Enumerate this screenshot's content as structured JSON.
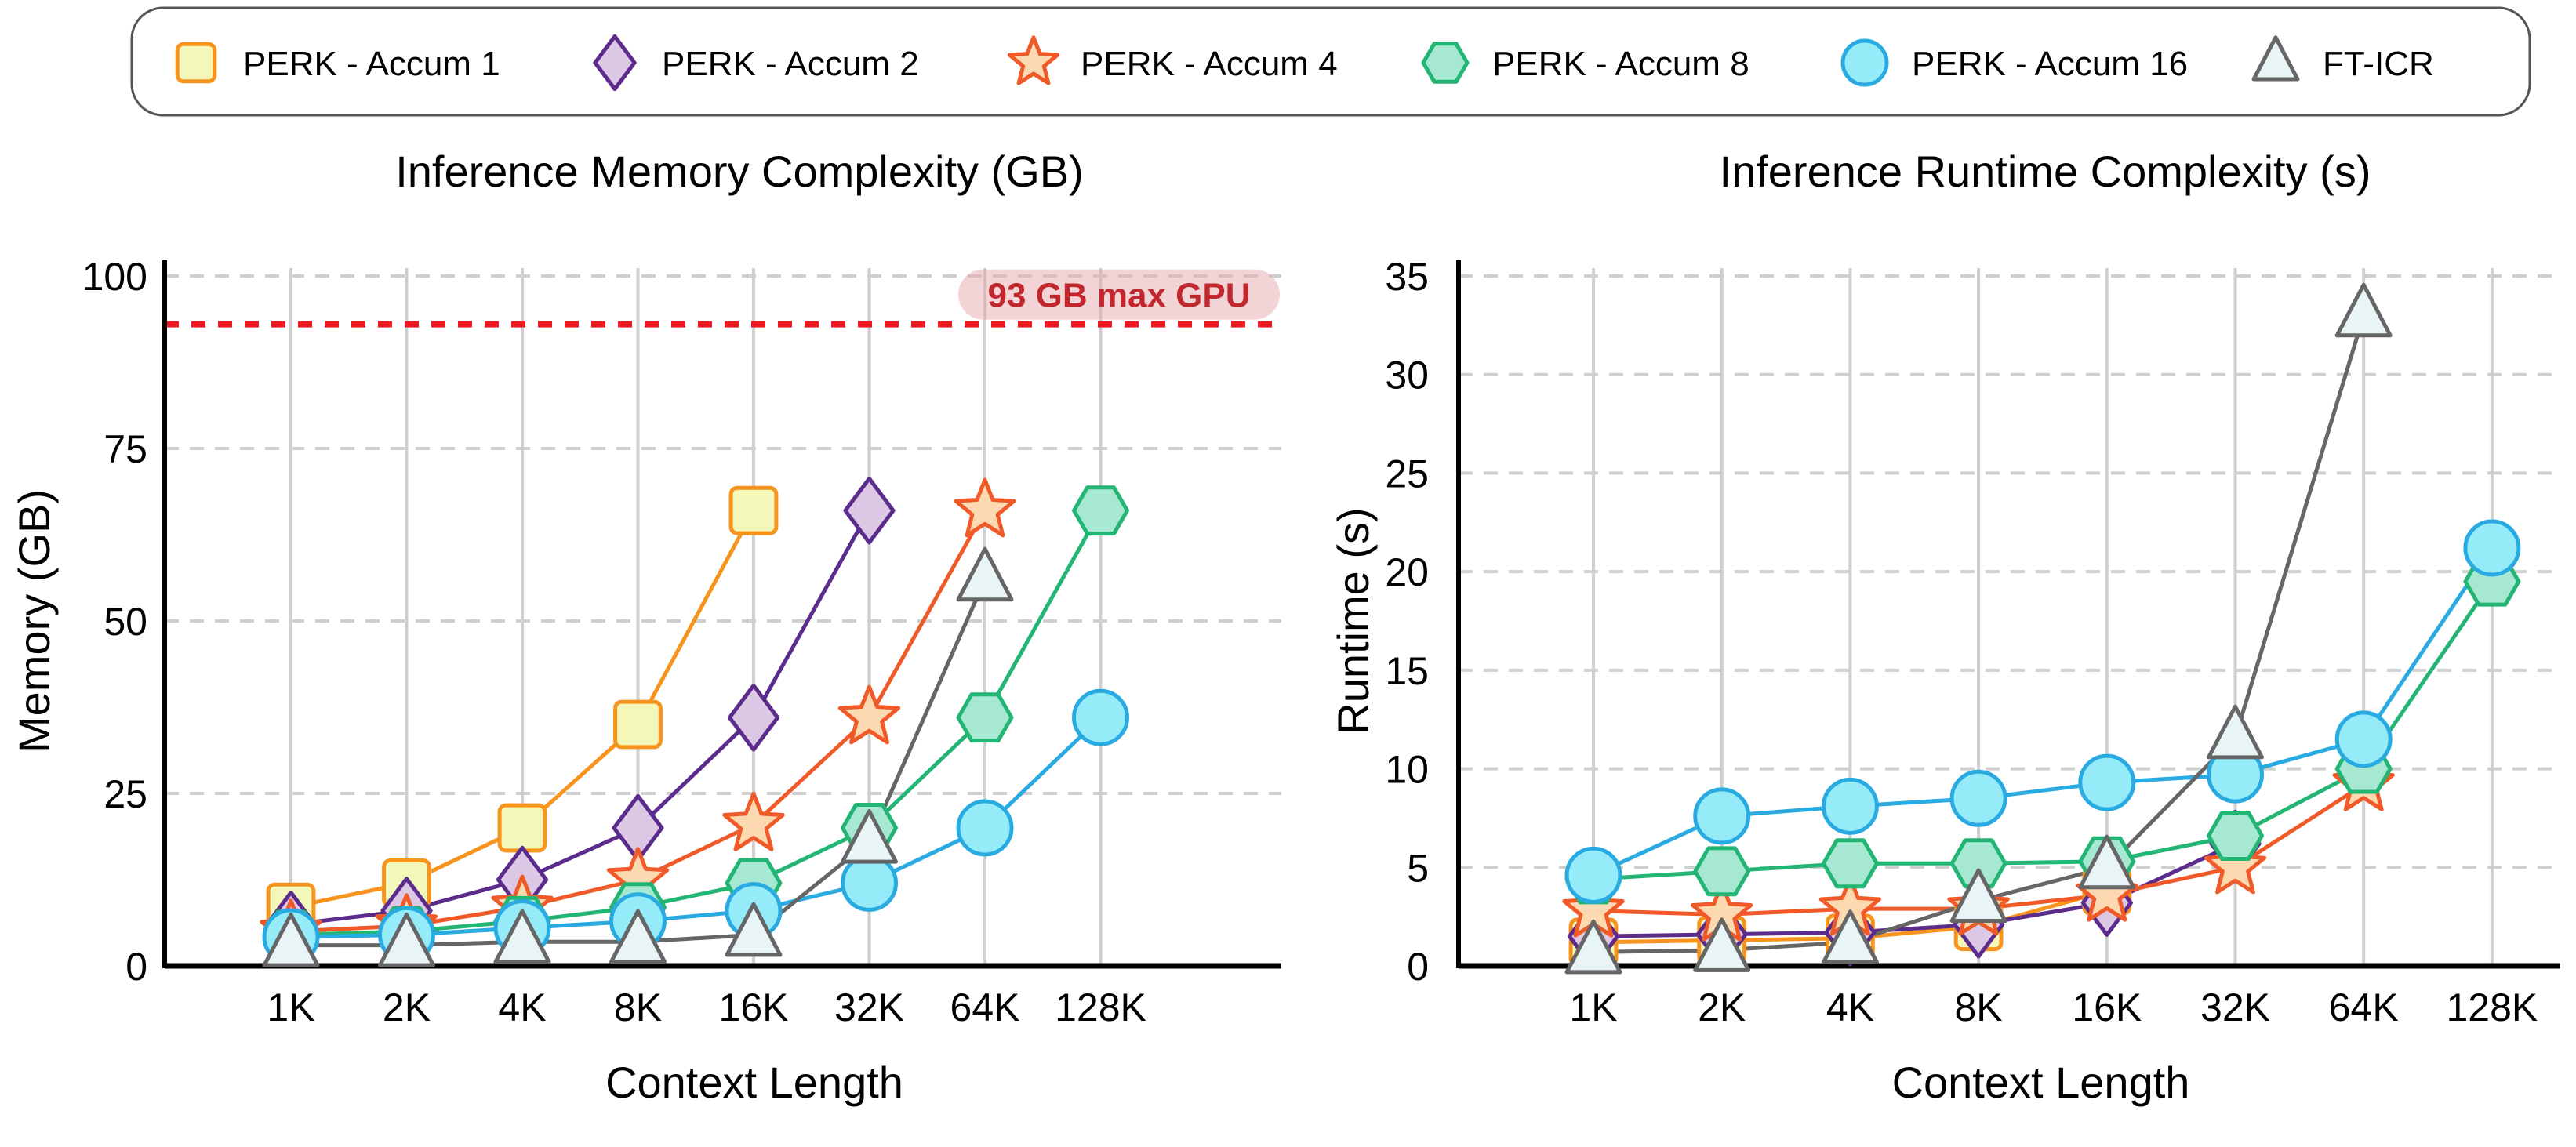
{
  "legend": {
    "placement": "top",
    "entries": [
      "PERK - Accum 1",
      "PERK - Accum 2",
      "PERK - Accum 4",
      "PERK - Accum 8",
      "PERK - Accum 16",
      "FT-ICR"
    ]
  },
  "series_style": [
    {
      "marker": "square",
      "fill": "#f3f7b9",
      "stroke": "#f7941d"
    },
    {
      "marker": "diamond",
      "fill": "#dcc8e4",
      "stroke": "#5b2c8c"
    },
    {
      "marker": "star",
      "fill": "#fcd9b0",
      "stroke": "#f05a28"
    },
    {
      "marker": "hexagon",
      "fill": "#a7e8d3",
      "stroke": "#22b573"
    },
    {
      "marker": "circle",
      "fill": "#95ebf8",
      "stroke": "#29abe2"
    },
    {
      "marker": "triangle",
      "fill": "#e8f4f6",
      "stroke": "#666666"
    }
  ],
  "chart_data": [
    {
      "type": "line",
      "title": "Inference Memory Complexity (GB)",
      "xlabel": "Context Length",
      "ylabel": "Memory (GB)",
      "categories": [
        "1K",
        "2K",
        "4K",
        "8K",
        "16K",
        "32K",
        "64K",
        "128K"
      ],
      "ylim": [
        0,
        100
      ],
      "yticks": [
        0,
        25,
        50,
        75,
        100
      ],
      "grid": true,
      "threshold": {
        "value": 93,
        "label": "93 GB max GPU",
        "color": "#ed1c24"
      },
      "series": [
        {
          "name": "PERK - Accum 1",
          "values": [
            8.5,
            12,
            20,
            35,
            66,
            null,
            null,
            null
          ]
        },
        {
          "name": "PERK - Accum 2",
          "values": [
            6,
            8,
            12.5,
            20,
            36,
            66,
            null,
            null
          ]
        },
        {
          "name": "PERK - Accum 4",
          "values": [
            5,
            5.8,
            8.5,
            12.5,
            20.5,
            36,
            66,
            null
          ]
        },
        {
          "name": "PERK - Accum 8",
          "values": [
            4.5,
            5,
            6.5,
            8.5,
            12,
            20,
            36,
            66
          ]
        },
        {
          "name": "PERK - Accum 16",
          "values": [
            4.2,
            4.5,
            5.5,
            6.5,
            8,
            12,
            20,
            36
          ]
        },
        {
          "name": "FT-ICR",
          "values": [
            3,
            3,
            3.5,
            3.5,
            4.5,
            18,
            56,
            null
          ]
        }
      ]
    },
    {
      "type": "line",
      "title": "Inference Runtime Complexity (s)",
      "xlabel": "Context Length",
      "ylabel": "Runtime (s)",
      "categories": [
        "1K",
        "2K",
        "4K",
        "8K",
        "16K",
        "32K",
        "64K",
        "128K"
      ],
      "ylim": [
        0,
        35
      ],
      "yticks": [
        0,
        5,
        10,
        15,
        20,
        25,
        30,
        35
      ],
      "grid": true,
      "series": [
        {
          "name": "PERK - Accum 1",
          "values": [
            1.2,
            1.3,
            1.4,
            2,
            3.8,
            null,
            null,
            null
          ]
        },
        {
          "name": "PERK - Accum 2",
          "values": [
            1.5,
            1.6,
            1.7,
            2.1,
            3.2,
            6.2,
            null,
            null
          ]
        },
        {
          "name": "PERK - Accum 4",
          "values": [
            2.8,
            2.6,
            2.9,
            2.9,
            3.6,
            5,
            9.2,
            null
          ]
        },
        {
          "name": "PERK - Accum 8",
          "values": [
            4.4,
            4.8,
            5.2,
            5.2,
            5.3,
            6.6,
            10,
            19.5
          ]
        },
        {
          "name": "PERK - Accum 16",
          "values": [
            4.6,
            7.6,
            8.1,
            8.5,
            9.3,
            9.7,
            11.5,
            21.2
          ]
        },
        {
          "name": "FT-ICR",
          "values": [
            0.7,
            0.8,
            1.2,
            3.3,
            5,
            11.6,
            33,
            null
          ]
        }
      ]
    }
  ]
}
